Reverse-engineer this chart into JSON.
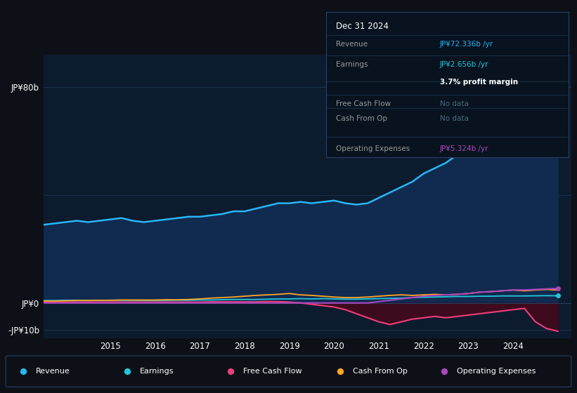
{
  "background_color": "#0d1117",
  "chart_bg_color": "#0d1b2e",
  "grid_color": "#1e3a5f",
  "years": [
    2013.5,
    2013.75,
    2014.0,
    2014.25,
    2014.5,
    2014.75,
    2015.0,
    2015.25,
    2015.5,
    2015.75,
    2016.0,
    2016.25,
    2016.5,
    2016.75,
    2017.0,
    2017.25,
    2017.5,
    2017.75,
    2018.0,
    2018.25,
    2018.5,
    2018.75,
    2019.0,
    2019.25,
    2019.5,
    2019.75,
    2020.0,
    2020.25,
    2020.5,
    2020.75,
    2021.0,
    2021.25,
    2021.5,
    2021.75,
    2022.0,
    2022.25,
    2022.5,
    2022.75,
    2023.0,
    2023.25,
    2023.5,
    2023.75,
    2024.0,
    2024.25,
    2024.5,
    2024.75,
    2025.0
  ],
  "revenue": [
    29,
    29.5,
    30,
    30.5,
    30,
    30.5,
    31,
    31.5,
    30.5,
    30,
    30.5,
    31,
    31.5,
    32,
    32,
    32.5,
    33,
    34,
    34,
    35,
    36,
    37,
    37,
    37.5,
    37,
    37.5,
    38,
    37,
    36.5,
    37,
    39,
    41,
    43,
    45,
    48,
    50,
    52,
    55,
    57,
    59,
    61,
    64,
    66,
    68,
    70,
    72,
    72.336
  ],
  "earnings": [
    0.9,
    0.9,
    1.0,
    1.0,
    0.9,
    0.95,
    1.0,
    1.0,
    0.95,
    0.9,
    0.9,
    0.95,
    1.0,
    1.0,
    1.1,
    1.1,
    1.2,
    1.3,
    1.3,
    1.3,
    1.4,
    1.5,
    1.5,
    1.6,
    1.5,
    1.6,
    1.5,
    1.4,
    1.4,
    1.5,
    1.6,
    1.7,
    1.8,
    2.0,
    2.1,
    2.2,
    2.3,
    2.4,
    2.4,
    2.5,
    2.5,
    2.6,
    2.6,
    2.6,
    2.65,
    2.7,
    2.656
  ],
  "free_cash_flow": [
    0.3,
    0.3,
    0.3,
    0.3,
    0.3,
    0.3,
    0.3,
    0.3,
    0.3,
    0.3,
    0.3,
    0.3,
    0.3,
    0.3,
    0.3,
    0.4,
    0.4,
    0.4,
    0.4,
    0.4,
    0.5,
    0.5,
    0.3,
    0.0,
    -0.5,
    -1.0,
    -1.5,
    -2.5,
    -4.0,
    -5.5,
    -7.0,
    -8.0,
    -7.0,
    -6.0,
    -5.5,
    -5.0,
    -5.5,
    -5.0,
    -4.5,
    -4.0,
    -3.5,
    -3.0,
    -2.5,
    -2.0,
    -7.0,
    -9.5,
    -10.5
  ],
  "cash_from_op": [
    0.7,
    0.7,
    0.8,
    0.9,
    0.9,
    1.0,
    1.0,
    1.1,
    1.1,
    1.1,
    1.1,
    1.2,
    1.2,
    1.3,
    1.5,
    1.8,
    2.0,
    2.2,
    2.5,
    2.8,
    3.0,
    3.2,
    3.5,
    3.0,
    2.8,
    2.5,
    2.2,
    2.0,
    2.0,
    2.2,
    2.5,
    2.8,
    3.0,
    2.8,
    3.0,
    3.2,
    3.0,
    3.2,
    3.5,
    4.0,
    4.2,
    4.5,
    4.8,
    4.5,
    4.8,
    5.0,
    4.8
  ],
  "op_expenses": [
    0.0,
    0.0,
    0.0,
    0.0,
    0.0,
    0.0,
    0.0,
    0.0,
    0.0,
    0.0,
    0.0,
    0.0,
    0.0,
    0.0,
    0.0,
    0.0,
    0.0,
    0.0,
    0.0,
    0.0,
    0.0,
    0.0,
    0.0,
    0.0,
    0.0,
    0.0,
    0.0,
    0.0,
    0.0,
    0.0,
    0.5,
    1.0,
    1.5,
    2.0,
    2.5,
    2.8,
    3.0,
    3.2,
    3.5,
    4.0,
    4.2,
    4.5,
    4.8,
    4.8,
    5.0,
    5.2,
    5.324
  ],
  "revenue_color": "#29b6f6",
  "earnings_color": "#26c6da",
  "free_cash_flow_color": "#ec407a",
  "cash_from_op_color": "#ffa726",
  "op_expenses_color": "#ab47bc",
  "revenue_fill_color": "#102a50",
  "free_cash_fill_color": "#3d0a1e",
  "ylabel_80": "JP¥80b",
  "ylabel_0": "JP¥0",
  "ylabel_neg10": "-JP¥10b",
  "ytick_80": 80,
  "ytick_0": 0,
  "ytick_neg10": -10,
  "xlim_min": 2013.5,
  "xlim_max": 2025.3,
  "ylim_min": -13,
  "ylim_max": 92,
  "xticks": [
    2015,
    2016,
    2017,
    2018,
    2019,
    2020,
    2021,
    2022,
    2023,
    2024
  ],
  "info_title": "Dec 31 2024",
  "info_revenue_label": "Revenue",
  "info_revenue_value": "JP¥72.336b /yr",
  "info_earnings_label": "Earnings",
  "info_earnings_value": "JP¥2.656b /yr",
  "info_margin": "3.7% profit margin",
  "info_fcf_label": "Free Cash Flow",
  "info_fcf_value": "No data",
  "info_cfop_label": "Cash From Op",
  "info_cfop_value": "No data",
  "info_opex_label": "Operating Expenses",
  "info_opex_value": "JP¥5.324b /yr",
  "legend_labels": [
    "Revenue",
    "Earnings",
    "Free Cash Flow",
    "Cash From Op",
    "Operating Expenses"
  ],
  "legend_colors": [
    "#29b6f6",
    "#26c6da",
    "#ec407a",
    "#ffa726",
    "#ab47bc"
  ]
}
